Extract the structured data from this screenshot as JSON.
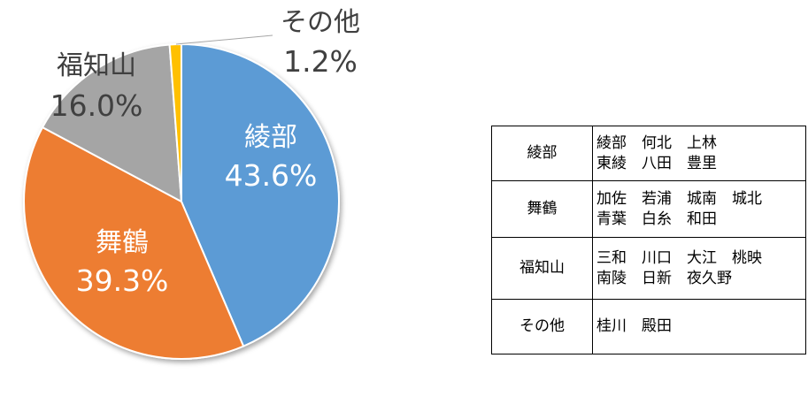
{
  "chart_data": {
    "type": "pie",
    "slices": [
      {
        "label": "綾部",
        "percent_label": "43.6%",
        "value": 43.6,
        "color": "#5B9BD5"
      },
      {
        "label": "舞鶴",
        "percent_label": "39.3%",
        "value": 39.3,
        "color": "#ED7D31"
      },
      {
        "label": "福知山",
        "percent_label": "16.0%",
        "value": 16.0,
        "color": "#A5A5A5"
      },
      {
        "label": "その他",
        "percent_label": "1.2%",
        "value": 1.2,
        "color": "#FFC000"
      }
    ]
  },
  "table": {
    "rows": [
      {
        "region": "綾部",
        "lines": [
          "綾部　何北　上林",
          "東綾　八田　豊里"
        ]
      },
      {
        "region": "舞鶴",
        "lines": [
          "加佐　若浦　城南　城北",
          "青葉　白糸　和田"
        ]
      },
      {
        "region": "福知山",
        "lines": [
          "三和　川口　大江　桃映",
          "南陵　日新　夜久野"
        ]
      },
      {
        "region": "その他",
        "lines": [
          "桂川　殿田"
        ]
      }
    ]
  }
}
